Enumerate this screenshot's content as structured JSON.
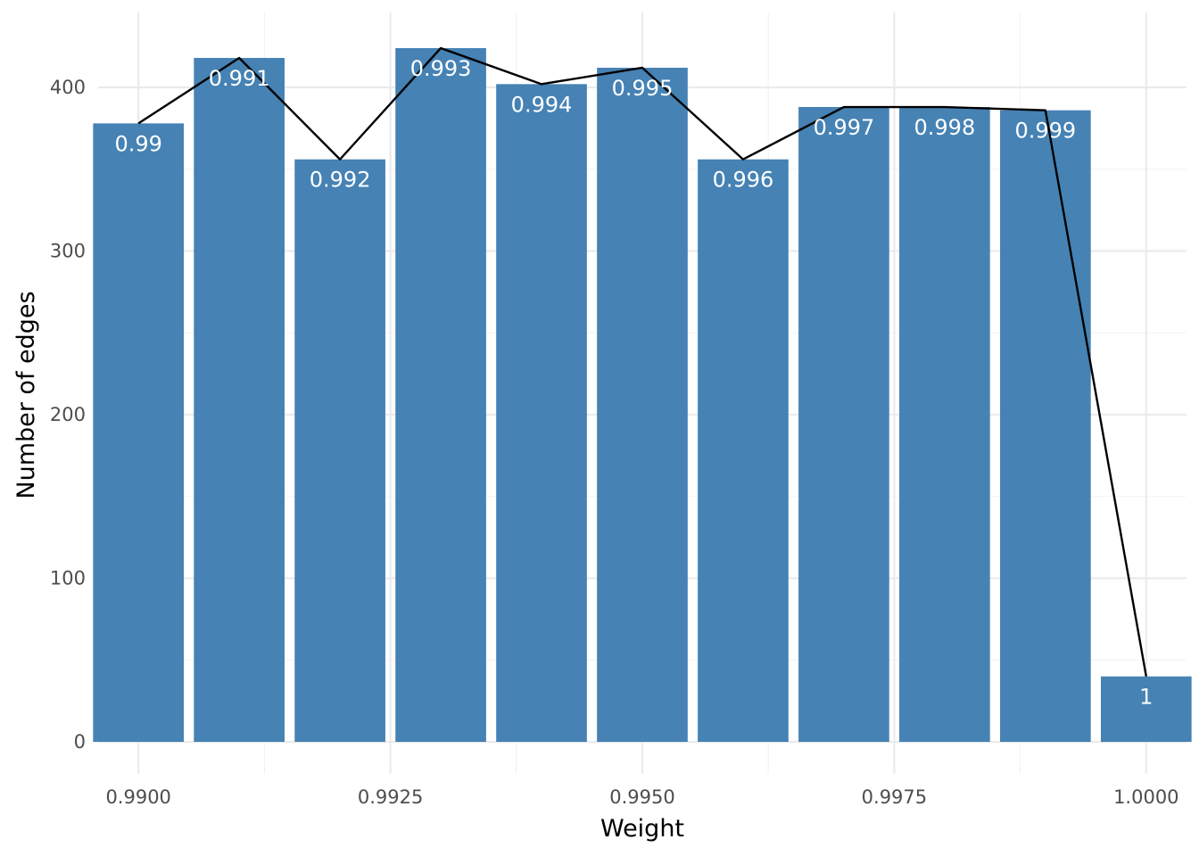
{
  "chart_data": {
    "type": "bar",
    "xlabel": "Weight",
    "ylabel": "Number of edges",
    "x": [
      0.99,
      0.991,
      0.992,
      0.993,
      0.994,
      0.995,
      0.996,
      0.997,
      0.998,
      0.999,
      1.0
    ],
    "values": [
      378,
      418,
      356,
      424,
      402,
      412,
      356,
      388,
      388,
      386,
      40
    ],
    "bar_labels": [
      "0.99",
      "0.991",
      "0.992",
      "0.993",
      "0.994",
      "0.995",
      "0.996",
      "0.997",
      "0.998",
      "0.999",
      "1"
    ],
    "line_values": [
      378,
      418,
      356,
      424,
      402,
      412,
      356,
      388,
      388,
      386,
      40
    ],
    "xlim": [
      0.9896,
      1.0004
    ],
    "ylim": [
      0,
      445
    ],
    "x_ticks": [
      0.99,
      0.9925,
      0.995,
      0.9975,
      1.0
    ],
    "x_tick_labels": [
      "0.9900",
      "0.9925",
      "0.9950",
      "0.9975",
      "1.0000"
    ],
    "y_ticks": [
      0,
      100,
      200,
      300,
      400
    ],
    "y_tick_labels": [
      "0",
      "100",
      "200",
      "300",
      "400"
    ],
    "bar_width": 0.0009,
    "grid": true,
    "bar_color": "#4682b4",
    "line_color": "#000000"
  }
}
